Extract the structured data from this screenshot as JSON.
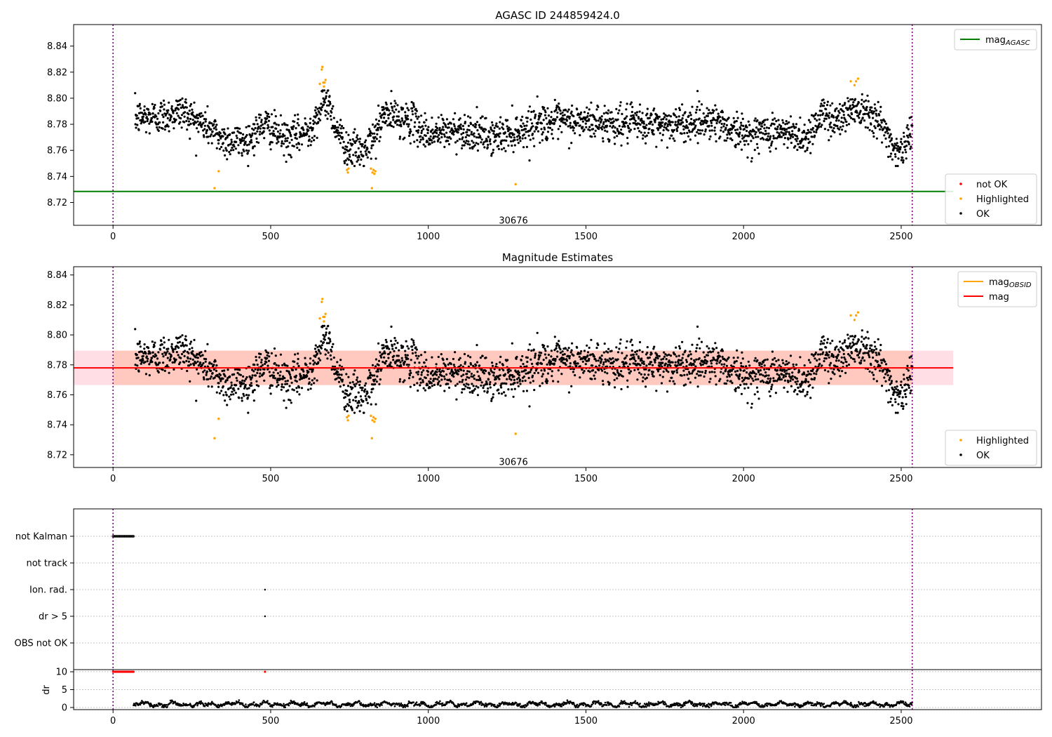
{
  "chart_data": [
    {
      "type": "scatter",
      "title": "AGASC ID 244859424.0",
      "xlim": [
        -125,
        2945
      ],
      "ylim": [
        8.7025,
        8.8565
      ],
      "x_ticks": [
        0,
        500,
        1000,
        1500,
        2000,
        2500
      ],
      "y_ticks": [
        8.72,
        8.74,
        8.76,
        8.78,
        8.8,
        8.82,
        8.84
      ],
      "y_tick_labels": [
        "8.72",
        "8.74",
        "8.76",
        "8.78",
        "8.80",
        "8.82",
        "8.84"
      ],
      "vlines": [
        0,
        2535
      ],
      "hlines": [
        {
          "name": "mag_AGASC",
          "y": 8.7285,
          "x_range": [
            -125,
            2665
          ],
          "color": "#008000"
        }
      ],
      "annotation": {
        "text": "30676",
        "x": 1270,
        "y": 8.7065
      },
      "legends": [
        {
          "placement": "upper-right",
          "entries": [
            {
              "label": "mag",
              "sub": "AGASC",
              "kind": "line",
              "color": "#008000"
            }
          ]
        },
        {
          "placement": "lower-right",
          "entries": [
            {
              "label": "not OK",
              "kind": "dot",
              "color": "#ff0000"
            },
            {
              "label": "Highlighted",
              "kind": "dot",
              "color": "#ffa500"
            },
            {
              "label": "OK",
              "kind": "dot",
              "color": "#000000"
            }
          ]
        }
      ],
      "highlighted": [
        [
          322,
          8.731
        ],
        [
          335,
          8.744
        ],
        [
          656,
          8.811
        ],
        [
          662,
          8.822
        ],
        [
          664,
          8.824
        ],
        [
          667,
          8.812
        ],
        [
          669,
          8.809
        ],
        [
          671,
          8.812
        ],
        [
          674,
          8.814
        ],
        [
          742,
          8.745
        ],
        [
          745,
          8.743
        ],
        [
          747,
          8.746
        ],
        [
          818,
          8.746
        ],
        [
          821,
          8.731
        ],
        [
          823,
          8.743
        ],
        [
          826,
          8.745
        ],
        [
          829,
          8.742
        ],
        [
          832,
          8.744
        ],
        [
          1277,
          8.734
        ],
        [
          2340,
          8.813
        ],
        [
          2352,
          8.81
        ],
        [
          2357,
          8.813
        ],
        [
          2363,
          8.815
        ]
      ]
    },
    {
      "type": "scatter",
      "title": "Magnitude Estimates",
      "xlim": [
        -125,
        2945
      ],
      "ylim": [
        8.7115,
        8.8455
      ],
      "x_ticks": [
        0,
        500,
        1000,
        1500,
        2000,
        2500
      ],
      "y_ticks": [
        8.72,
        8.74,
        8.76,
        8.78,
        8.8,
        8.82,
        8.84
      ],
      "y_tick_labels": [
        "8.72",
        "8.74",
        "8.76",
        "8.78",
        "8.80",
        "8.82",
        "8.84"
      ],
      "vlines": [
        0,
        2535
      ],
      "band": {
        "y_low": 8.7665,
        "y_high": 8.7895,
        "x_range": [
          -125,
          2665
        ]
      },
      "hlines": [
        {
          "name": "mag",
          "y": 8.778,
          "x_range": [
            -125,
            2665
          ],
          "color": "#ff0000"
        }
      ],
      "annotation": {
        "text": "30676",
        "x": 1270,
        "y": 8.7155
      },
      "legends": [
        {
          "placement": "upper-right",
          "entries": [
            {
              "label": "mag",
              "sub": "OBSID",
              "kind": "line",
              "color": "#ffa500"
            },
            {
              "label": "mag",
              "kind": "line",
              "color": "#ff0000"
            }
          ]
        },
        {
          "placement": "lower-right",
          "entries": [
            {
              "label": "Highlighted",
              "kind": "dot",
              "color": "#ffa500"
            },
            {
              "label": "OK",
              "kind": "dot",
              "color": "#000000"
            }
          ]
        }
      ]
    },
    {
      "type": "scatter",
      "title": "",
      "xlim": [
        -125,
        2945
      ],
      "categories": [
        "OBS not OK",
        "dr > 5",
        "Ion. rad.",
        "not track",
        "not Kalman"
      ],
      "flags": {
        "not Kalman": {
          "x_range": [
            0,
            65
          ],
          "count": 26
        },
        "Ion. rad.": {
          "x": [
            482
          ]
        },
        "dr > 5": {
          "x": [
            482
          ]
        }
      }
    },
    {
      "type": "scatter",
      "title": "",
      "ylabel": "dr",
      "xlim": [
        -125,
        2945
      ],
      "ylim": [
        -0.6,
        10.6
      ],
      "x_ticks": [
        0,
        500,
        1000,
        1500,
        2000,
        2500
      ],
      "y_ticks": [
        0,
        5,
        10
      ],
      "y_tick_labels": [
        "0",
        "5",
        "10"
      ],
      "clipped_points": {
        "y": 10,
        "x_range": [
          0,
          65
        ],
        "count": 26,
        "extra_x": [
          482
        ],
        "color": "#ff0000"
      },
      "dr_range": [
        0,
        2.5
      ]
    }
  ]
}
